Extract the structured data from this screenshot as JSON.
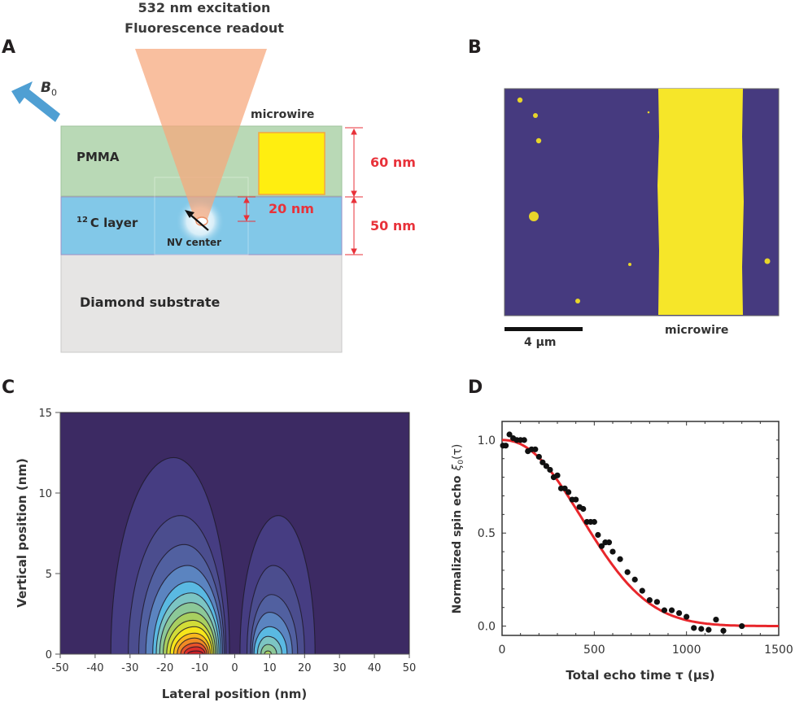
{
  "panels": {
    "A": {
      "letter": "A",
      "title_line1": "532 nm excitation",
      "title_line2": "Fluorescence readout",
      "field_label": "B",
      "field_subscript": "0",
      "microwire_label": "microwire",
      "layer_pmma": "PMMA",
      "layer_c12_sup": "12",
      "layer_c12": "C layer",
      "nv_label": "NV center",
      "layer_substrate": "Diamond substrate",
      "dim_pmma": "60 nm",
      "dim_c12": "50 nm",
      "dim_nv_depth": "20 nm",
      "colors": {
        "pmma": "#b9d9b6",
        "c12": "#82c8e8",
        "substrate": "#e6e5e4",
        "microwire": "#ffee10",
        "microwire_border": "#f4a640",
        "beam": "#f6a67a",
        "field_arrow": "#4f9fd3",
        "dimension": "#e8323a"
      }
    },
    "B": {
      "letter": "B",
      "scalebar_label": "4 µm",
      "microwire_label": "microwire",
      "colors": {
        "background": "#463a7f",
        "wire": "#f6e629"
      }
    },
    "C": {
      "letter": "C",
      "chart_type": "contour"
    },
    "D": {
      "letter": "D"
    }
  },
  "chart_data": [
    {
      "type": "heatmap",
      "subtype": "filled-contour",
      "panel": "C",
      "xlabel": "Lateral position (nm)",
      "ylabel": "Vertical position (nm)",
      "xlim": [
        -50,
        50
      ],
      "ylim": [
        0,
        15
      ],
      "xticks": [
        "-50",
        "-40",
        "-30",
        "-20",
        "-10",
        "0",
        "10",
        "20",
        "30",
        "40",
        "50"
      ],
      "xtick_values": [
        -50,
        -40,
        -30,
        -20,
        -10,
        0,
        10,
        20,
        30,
        40,
        50
      ],
      "yticks": [
        "0",
        "5",
        "10",
        "15"
      ],
      "ytick_values": [
        0,
        5,
        10,
        15
      ],
      "lobes": [
        {
          "name": "left-lobe",
          "center_x": -11,
          "levels": [
            {
              "x0": -35.5,
              "x1": -1.5,
              "peak_x": -17.5,
              "top": 12.2,
              "color": "#463d82"
            },
            {
              "x0": -30.5,
              "x1": -2.5,
              "peak_x": -15.5,
              "top": 8.6,
              "color": "#4b4d8e"
            },
            {
              "x0": -27.5,
              "x1": -3.0,
              "peak_x": -14.5,
              "top": 6.8,
              "color": "#5160a0"
            },
            {
              "x0": -25.5,
              "x1": -3.5,
              "peak_x": -13.5,
              "top": 5.5,
              "color": "#5b84c0"
            },
            {
              "x0": -23.5,
              "x1": -4.0,
              "peak_x": -13.0,
              "top": 4.5,
              "color": "#5ab9e2"
            },
            {
              "x0": -22.5,
              "x1": -4.5,
              "peak_x": -12.5,
              "top": 3.8,
              "color": "#7cc5c3"
            },
            {
              "x0": -21.5,
              "x1": -5.0,
              "peak_x": -12.5,
              "top": 3.2,
              "color": "#8cc898"
            },
            {
              "x0": -20.5,
              "x1": -5.5,
              "peak_x": -12.0,
              "top": 2.6,
              "color": "#a8cf60"
            },
            {
              "x0": -19.5,
              "x1": -6.0,
              "peak_x": -12.0,
              "top": 2.1,
              "color": "#d2dc38"
            },
            {
              "x0": -18.5,
              "x1": -6.5,
              "peak_x": -11.5,
              "top": 1.7,
              "color": "#f6e51a"
            },
            {
              "x0": -17.5,
              "x1": -7.0,
              "peak_x": -11.5,
              "top": 1.3,
              "color": "#f9b71e"
            },
            {
              "x0": -16.5,
              "x1": -7.5,
              "peak_x": -11.5,
              "top": 1.0,
              "color": "#f08a24"
            },
            {
              "x0": -15.5,
              "x1": -8.0,
              "peak_x": -11.0,
              "top": 0.7,
              "color": "#e8532a"
            },
            {
              "x0": -14.5,
              "x1": -8.5,
              "peak_x": -11.0,
              "top": 0.45,
              "color": "#dc2f2a"
            },
            {
              "x0": -13.5,
              "x1": -9.0,
              "peak_x": -11.0,
              "top": 0.2,
              "color": "#c81e24"
            }
          ]
        },
        {
          "name": "right-lobe",
          "center_x": 10,
          "levels": [
            {
              "x0": 1.5,
              "x1": 23.0,
              "peak_x": 12.5,
              "top": 8.6,
              "color": "#463d82"
            },
            {
              "x0": 3.5,
              "x1": 20.0,
              "peak_x": 11.0,
              "top": 5.5,
              "color": "#4b4d8e"
            },
            {
              "x0": 4.5,
              "x1": 18.0,
              "peak_x": 10.5,
              "top": 3.7,
              "color": "#5160a0"
            },
            {
              "x0": 5.0,
              "x1": 16.5,
              "peak_x": 10.0,
              "top": 2.6,
              "color": "#5b84c0"
            },
            {
              "x0": 5.5,
              "x1": 15.0,
              "peak_x": 10.0,
              "top": 1.7,
              "color": "#5ab9e2"
            },
            {
              "x0": 6.5,
              "x1": 13.5,
              "peak_x": 9.5,
              "top": 1.1,
              "color": "#7cc5c3"
            },
            {
              "x0": 7.5,
              "x1": 12.0,
              "peak_x": 9.5,
              "top": 0.6,
              "color": "#8cc898"
            },
            {
              "x0": 8.5,
              "x1": 10.5,
              "peak_x": 9.5,
              "top": 0.2,
              "color": "#a8cf60"
            }
          ]
        }
      ],
      "background_color": "#3c2a63"
    },
    {
      "type": "scatter",
      "panel": "D",
      "xlabel": "Total echo time τ (µs)",
      "ylabel": "Normalized spin echo",
      "ylabel_symbol": "ξ",
      "ylabel_subscript": "0",
      "ylabel_arg": "(τ)",
      "xlim": [
        0,
        1500
      ],
      "ylim": [
        -0.05,
        1.1
      ],
      "xticks": [
        "0",
        "500",
        "1000",
        "1500"
      ],
      "xtick_values": [
        0,
        500,
        1000,
        1500
      ],
      "yticks": [
        "0.0",
        "0.5",
        "1.0"
      ],
      "ytick_values": [
        0,
        0.5,
        1.0
      ],
      "series": [
        {
          "name": "data",
          "kind": "points",
          "color": "#111111",
          "x": [
            5,
            20,
            40,
            60,
            80,
            100,
            120,
            140,
            160,
            180,
            200,
            220,
            240,
            260,
            280,
            300,
            320,
            340,
            360,
            380,
            400,
            420,
            440,
            460,
            480,
            500,
            520,
            540,
            560,
            580,
            600,
            640,
            680,
            720,
            760,
            800,
            840,
            880,
            920,
            960,
            1000,
            1040,
            1080,
            1120,
            1160,
            1200,
            1300
          ],
          "y": [
            0.97,
            0.97,
            1.03,
            1.01,
            1.0,
            1.0,
            1.0,
            0.94,
            0.95,
            0.95,
            0.91,
            0.88,
            0.86,
            0.84,
            0.8,
            0.81,
            0.74,
            0.74,
            0.72,
            0.68,
            0.68,
            0.64,
            0.63,
            0.56,
            0.56,
            0.56,
            0.49,
            0.43,
            0.45,
            0.45,
            0.4,
            0.36,
            0.29,
            0.25,
            0.19,
            0.14,
            0.13,
            0.085,
            0.085,
            0.07,
            0.05,
            -0.01,
            -0.015,
            -0.02,
            0.035,
            -0.025,
            0.0
          ]
        },
        {
          "name": "fit",
          "kind": "line",
          "color": "#e8262b",
          "model": "exp(-(tau/T)^n)",
          "T": 570,
          "n": 2.2
        }
      ]
    }
  ]
}
